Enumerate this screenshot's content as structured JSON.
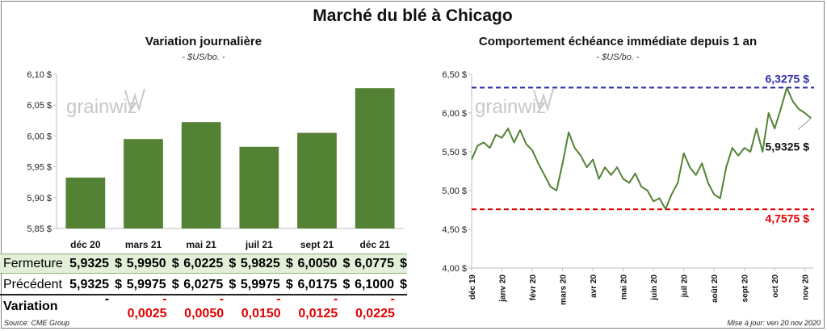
{
  "title": "Marché du blé à Chicago",
  "colors": {
    "bar": "#548235",
    "line": "#548235",
    "high": "#2e2eaa",
    "low": "#e00000",
    "close_row_bg": "#e2efd9",
    "watermark": "#c8c8c8"
  },
  "watermark": "grainwiz",
  "left": {
    "subtitle": "Variation journalière",
    "unit": "- $US/bo. -"
  },
  "right": {
    "subtitle": "Comportement échéance immédiate depuis 1 an",
    "unit": "- $US/bo. -"
  },
  "table": {
    "close_label": "Fermeture",
    "prev_label": "Précédent",
    "var_label": "Variation",
    "currency": "$",
    "close": [
      "5,9325",
      "5,9950",
      "6,0225",
      "5,9825",
      "6,0050",
      "6,0775"
    ],
    "prev": [
      "5,9325",
      "5,9975",
      "6,0275",
      "5,9975",
      "6,0175",
      "6,1000"
    ],
    "var": [
      "-",
      "- 0,0025",
      "- 0,0050",
      "- 0,0150",
      "- 0,0125",
      "- 0,0225"
    ]
  },
  "footer": {
    "source": "Source: CME Group",
    "updated": "Mise à jour: ven 20 nov 2020"
  },
  "chart_data": [
    {
      "type": "bar",
      "title": "Variation journalière",
      "ylabel": "$US/bo.",
      "categories": [
        "déc 20",
        "mars 21",
        "mai 21",
        "juil 21",
        "sept 21",
        "déc 21"
      ],
      "values": [
        5.9325,
        5.995,
        6.0225,
        5.9825,
        6.005,
        6.0775
      ],
      "ylim": [
        5.85,
        6.1
      ],
      "yticks": [
        5.85,
        5.9,
        5.95,
        6.0,
        6.05,
        6.1
      ],
      "ytick_labels": [
        "5,85 $",
        "5,90 $",
        "5,95 $",
        "6,00 $",
        "6,05 $",
        "6,10 $"
      ],
      "grid": false
    },
    {
      "type": "line",
      "title": "Comportement échéance immédiate depuis 1 an",
      "ylabel": "$US/bo.",
      "ylim": [
        4.0,
        6.5
      ],
      "yticks": [
        4.0,
        4.5,
        5.0,
        5.5,
        6.0,
        6.5
      ],
      "ytick_labels": [
        "4,00 $",
        "4,50 $",
        "5,00 $",
        "5,50 $",
        "6,00 $",
        "6,50 $"
      ],
      "xtick_labels": [
        "déc 19",
        "janv 20",
        "févr 20",
        "mars 20",
        "avr 20",
        "mai 20",
        "juin 20",
        "juil 20",
        "août 20",
        "sept 20",
        "oct 20",
        "nov 20"
      ],
      "grid": false,
      "high": 6.3275,
      "high_label": "6,3275 $",
      "low": 4.7575,
      "low_label": "4,7575 $",
      "last": 5.9325,
      "last_label": "5,9325 $",
      "x": [
        0,
        0.2,
        0.4,
        0.6,
        0.8,
        1.0,
        1.2,
        1.4,
        1.6,
        1.8,
        2.0,
        2.2,
        2.4,
        2.6,
        2.8,
        3.0,
        3.2,
        3.4,
        3.6,
        3.8,
        4.0,
        4.2,
        4.4,
        4.6,
        4.8,
        5.0,
        5.2,
        5.4,
        5.6,
        5.8,
        6.0,
        6.2,
        6.4,
        6.6,
        6.8,
        7.0,
        7.2,
        7.4,
        7.6,
        7.8,
        8.0,
        8.2,
        8.4,
        8.6,
        8.8,
        9.0,
        9.2,
        9.4,
        9.6,
        9.8,
        10.0,
        10.2,
        10.4,
        10.6,
        10.8,
        11.0,
        11.2
      ],
      "y": [
        5.4,
        5.58,
        5.62,
        5.55,
        5.72,
        5.68,
        5.8,
        5.62,
        5.78,
        5.6,
        5.52,
        5.35,
        5.2,
        5.05,
        5.0,
        5.35,
        5.75,
        5.55,
        5.45,
        5.3,
        5.4,
        5.15,
        5.3,
        5.2,
        5.3,
        5.15,
        5.1,
        5.22,
        5.05,
        5.0,
        4.86,
        4.9,
        4.76,
        4.95,
        5.1,
        5.48,
        5.3,
        5.2,
        5.35,
        5.1,
        4.95,
        4.9,
        5.3,
        5.55,
        5.45,
        5.55,
        5.5,
        5.8,
        5.5,
        6.0,
        5.8,
        6.05,
        6.3275,
        6.15,
        6.05,
        6.0,
        5.9325
      ]
    }
  ]
}
